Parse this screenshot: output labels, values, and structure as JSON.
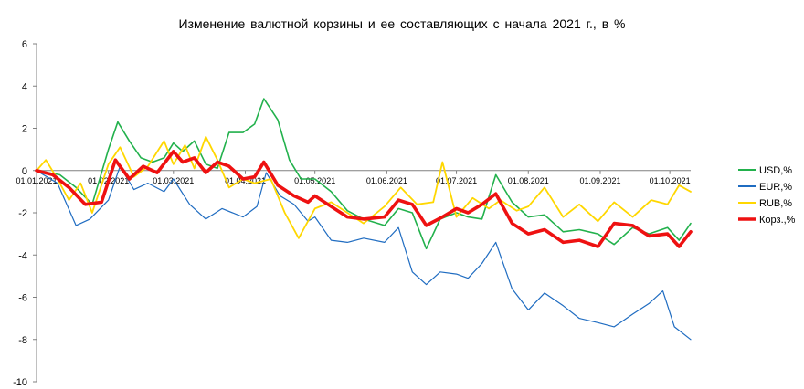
{
  "chart_data": {
    "type": "line",
    "title": "Изменение  валютной корзины  и ее составляющих  с начала 2021 г., в %",
    "xlabel": "",
    "ylabel": "",
    "ylim": [
      -10,
      6
    ],
    "y_ticks": [
      -10,
      -8,
      -6,
      -4,
      -2,
      0,
      2,
      4,
      6
    ],
    "x_range": [
      "2021-01-01",
      "2021-10-10"
    ],
    "x_ticks": [
      "01.01.2021",
      "01.02.2021",
      "01.03.2021",
      "01.04.2021",
      "01.05.2021",
      "01.06.2021",
      "01.07.2021",
      "01.08.2021",
      "01.09.2021",
      "01.10.2021"
    ],
    "grid": false,
    "legend_position": "right",
    "series": [
      {
        "name": "USD,%",
        "color": "#22b14c",
        "x": [
          "2021-01-01",
          "2021-01-11",
          "2021-01-18",
          "2021-01-25",
          "2021-02-01",
          "2021-02-05",
          "2021-02-10",
          "2021-02-15",
          "2021-02-20",
          "2021-02-25",
          "2021-03-01",
          "2021-03-05",
          "2021-03-10",
          "2021-03-15",
          "2021-03-20",
          "2021-03-25",
          "2021-03-31",
          "2021-04-05",
          "2021-04-09",
          "2021-04-15",
          "2021-04-20",
          "2021-04-25",
          "2021-05-01",
          "2021-05-08",
          "2021-05-15",
          "2021-05-22",
          "2021-05-31",
          "2021-06-06",
          "2021-06-12",
          "2021-06-18",
          "2021-06-24",
          "2021-07-01",
          "2021-07-06",
          "2021-07-12",
          "2021-07-18",
          "2021-07-25",
          "2021-08-01",
          "2021-08-08",
          "2021-08-16",
          "2021-08-23",
          "2021-08-31",
          "2021-09-07",
          "2021-09-15",
          "2021-09-22",
          "2021-09-30",
          "2021-10-05",
          "2021-10-10"
        ],
        "values": [
          0.0,
          -0.2,
          -0.8,
          -1.6,
          1.0,
          2.3,
          1.4,
          0.6,
          0.4,
          0.6,
          1.3,
          0.9,
          1.4,
          0.3,
          0.1,
          1.8,
          1.8,
          2.2,
          3.4,
          2.4,
          0.5,
          -0.4,
          -0.4,
          -1.0,
          -1.9,
          -2.3,
          -2.6,
          -1.8,
          -2.0,
          -3.7,
          -2.3,
          -2.0,
          -2.2,
          -2.3,
          -0.2,
          -1.5,
          -2.2,
          -2.1,
          -2.9,
          -2.8,
          -3.0,
          -3.5,
          -2.7,
          -3.0,
          -2.7,
          -3.3,
          -2.5
        ]
      },
      {
        "name": "EUR,%",
        "color": "#1f6cc1",
        "x": [
          "2021-01-01",
          "2021-01-10",
          "2021-01-18",
          "2021-01-24",
          "2021-02-01",
          "2021-02-06",
          "2021-02-12",
          "2021-02-18",
          "2021-02-25",
          "2021-03-01",
          "2021-03-08",
          "2021-03-15",
          "2021-03-22",
          "2021-03-31",
          "2021-04-06",
          "2021-04-10",
          "2021-04-16",
          "2021-04-22",
          "2021-04-28",
          "2021-05-01",
          "2021-05-08",
          "2021-05-15",
          "2021-05-22",
          "2021-05-31",
          "2021-06-06",
          "2021-06-12",
          "2021-06-18",
          "2021-06-24",
          "2021-07-01",
          "2021-07-06",
          "2021-07-12",
          "2021-07-18",
          "2021-07-25",
          "2021-08-01",
          "2021-08-08",
          "2021-08-16",
          "2021-08-23",
          "2021-08-31",
          "2021-09-07",
          "2021-09-15",
          "2021-09-22",
          "2021-09-28",
          "2021-10-03",
          "2021-10-10"
        ],
        "values": [
          0.0,
          -0.6,
          -2.6,
          -2.3,
          -1.4,
          0.2,
          -0.9,
          -0.6,
          -1.0,
          -0.4,
          -1.6,
          -2.3,
          -1.8,
          -2.2,
          -1.7,
          -0.1,
          -1.2,
          -1.6,
          -2.4,
          -2.2,
          -3.3,
          -3.4,
          -3.2,
          -3.4,
          -2.7,
          -4.8,
          -5.4,
          -4.8,
          -4.9,
          -5.1,
          -4.4,
          -3.4,
          -5.6,
          -6.6,
          -5.8,
          -6.4,
          -7.0,
          -7.2,
          -7.4,
          -6.8,
          -6.3,
          -5.7,
          -7.4,
          -8.0
        ]
      },
      {
        "name": "RUB,%",
        "color": "#ffd700",
        "x": [
          "2021-01-01",
          "2021-01-05",
          "2021-01-10",
          "2021-01-15",
          "2021-01-20",
          "2021-01-25",
          "2021-02-01",
          "2021-02-06",
          "2021-02-12",
          "2021-02-18",
          "2021-02-25",
          "2021-03-01",
          "2021-03-06",
          "2021-03-10",
          "2021-03-15",
          "2021-03-20",
          "2021-03-25",
          "2021-03-31",
          "2021-04-05",
          "2021-04-12",
          "2021-04-18",
          "2021-04-24",
          "2021-05-01",
          "2021-05-08",
          "2021-05-15",
          "2021-05-22",
          "2021-05-31",
          "2021-06-07",
          "2021-06-14",
          "2021-06-21",
          "2021-06-25",
          "2021-07-01",
          "2021-07-08",
          "2021-07-15",
          "2021-07-20",
          "2021-07-27",
          "2021-08-01",
          "2021-08-08",
          "2021-08-16",
          "2021-08-23",
          "2021-08-31",
          "2021-09-07",
          "2021-09-15",
          "2021-09-23",
          "2021-09-30",
          "2021-10-05",
          "2021-10-10"
        ],
        "values": [
          0.0,
          0.5,
          -0.4,
          -1.4,
          -0.6,
          -2.0,
          0.3,
          1.1,
          -0.3,
          0.2,
          1.4,
          0.3,
          1.2,
          0.1,
          1.6,
          0.5,
          -0.8,
          -0.4,
          -0.6,
          -0.4,
          -2.0,
          -3.2,
          -1.8,
          -1.5,
          -2.0,
          -2.5,
          -1.7,
          -0.8,
          -1.6,
          -1.5,
          0.4,
          -2.2,
          -1.3,
          -1.8,
          -1.4,
          -1.9,
          -1.7,
          -0.8,
          -2.2,
          -1.6,
          -2.4,
          -1.5,
          -2.2,
          -1.4,
          -1.6,
          -0.7,
          -1.0
        ]
      },
      {
        "name": "Корз.,%",
        "color": "#ee1111",
        "x": [
          "2021-01-01",
          "2021-01-08",
          "2021-01-15",
          "2021-01-22",
          "2021-01-29",
          "2021-02-04",
          "2021-02-10",
          "2021-02-16",
          "2021-02-22",
          "2021-03-01",
          "2021-03-05",
          "2021-03-10",
          "2021-03-15",
          "2021-03-20",
          "2021-03-25",
          "2021-03-31",
          "2021-04-05",
          "2021-04-09",
          "2021-04-15",
          "2021-04-22",
          "2021-04-28",
          "2021-05-01",
          "2021-05-08",
          "2021-05-15",
          "2021-05-22",
          "2021-05-31",
          "2021-06-06",
          "2021-06-12",
          "2021-06-18",
          "2021-06-25",
          "2021-07-01",
          "2021-07-06",
          "2021-07-12",
          "2021-07-18",
          "2021-07-25",
          "2021-08-01",
          "2021-08-08",
          "2021-08-16",
          "2021-08-23",
          "2021-08-31",
          "2021-09-07",
          "2021-09-15",
          "2021-09-22",
          "2021-09-30",
          "2021-10-05",
          "2021-10-10"
        ],
        "values": [
          0.0,
          -0.2,
          -0.8,
          -1.6,
          -1.5,
          0.5,
          -0.4,
          0.2,
          -0.1,
          0.9,
          0.4,
          0.6,
          -0.1,
          0.4,
          0.2,
          -0.4,
          -0.3,
          0.4,
          -0.7,
          -1.2,
          -1.5,
          -1.2,
          -1.7,
          -2.2,
          -2.3,
          -2.2,
          -1.4,
          -1.6,
          -2.6,
          -2.2,
          -1.8,
          -2.0,
          -1.6,
          -1.1,
          -2.5,
          -3.0,
          -2.8,
          -3.4,
          -3.3,
          -3.6,
          -2.5,
          -2.6,
          -3.1,
          -3.0,
          -3.6,
          -2.9
        ]
      }
    ]
  }
}
